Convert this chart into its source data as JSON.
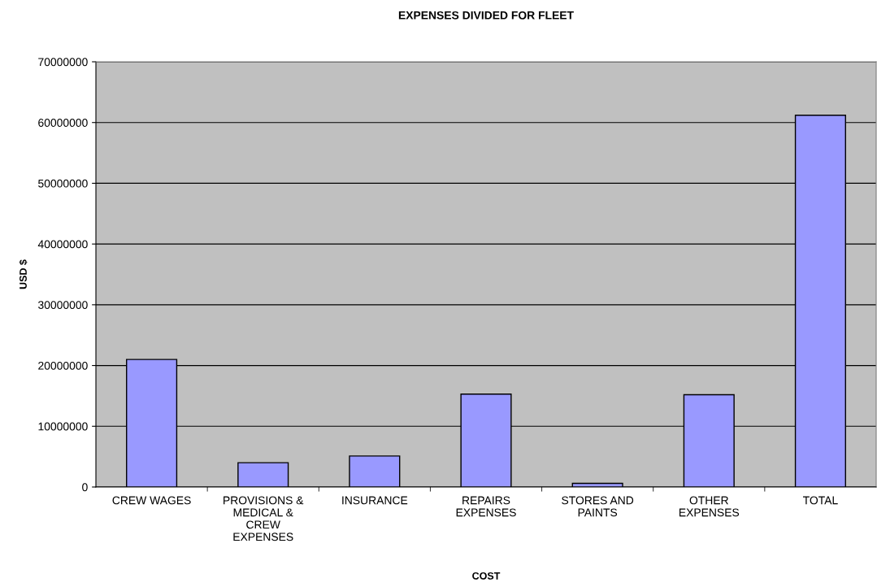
{
  "chart_data": {
    "type": "bar",
    "title": "EXPENSES DIVIDED FOR FLEET",
    "xlabel": "COST",
    "ylabel": "USD $",
    "categories": [
      "CREW WAGES",
      "PROVISIONS &\nMEDICAL &\nCREW\nEXPENSES",
      "INSURANCE",
      "REPAIRS\nEXPENSES",
      "STORES AND\nPAINTS",
      "OTHER\nEXPENSES",
      "TOTAL"
    ],
    "values": [
      21000000,
      4000000,
      5100000,
      15300000,
      600000,
      15200000,
      61200000
    ],
    "color": "#9999ff",
    "ylim": [
      0,
      70000000
    ],
    "yticks": [
      0,
      10000000,
      20000000,
      30000000,
      40000000,
      50000000,
      60000000,
      70000000
    ],
    "grid": "y",
    "legend": false
  }
}
